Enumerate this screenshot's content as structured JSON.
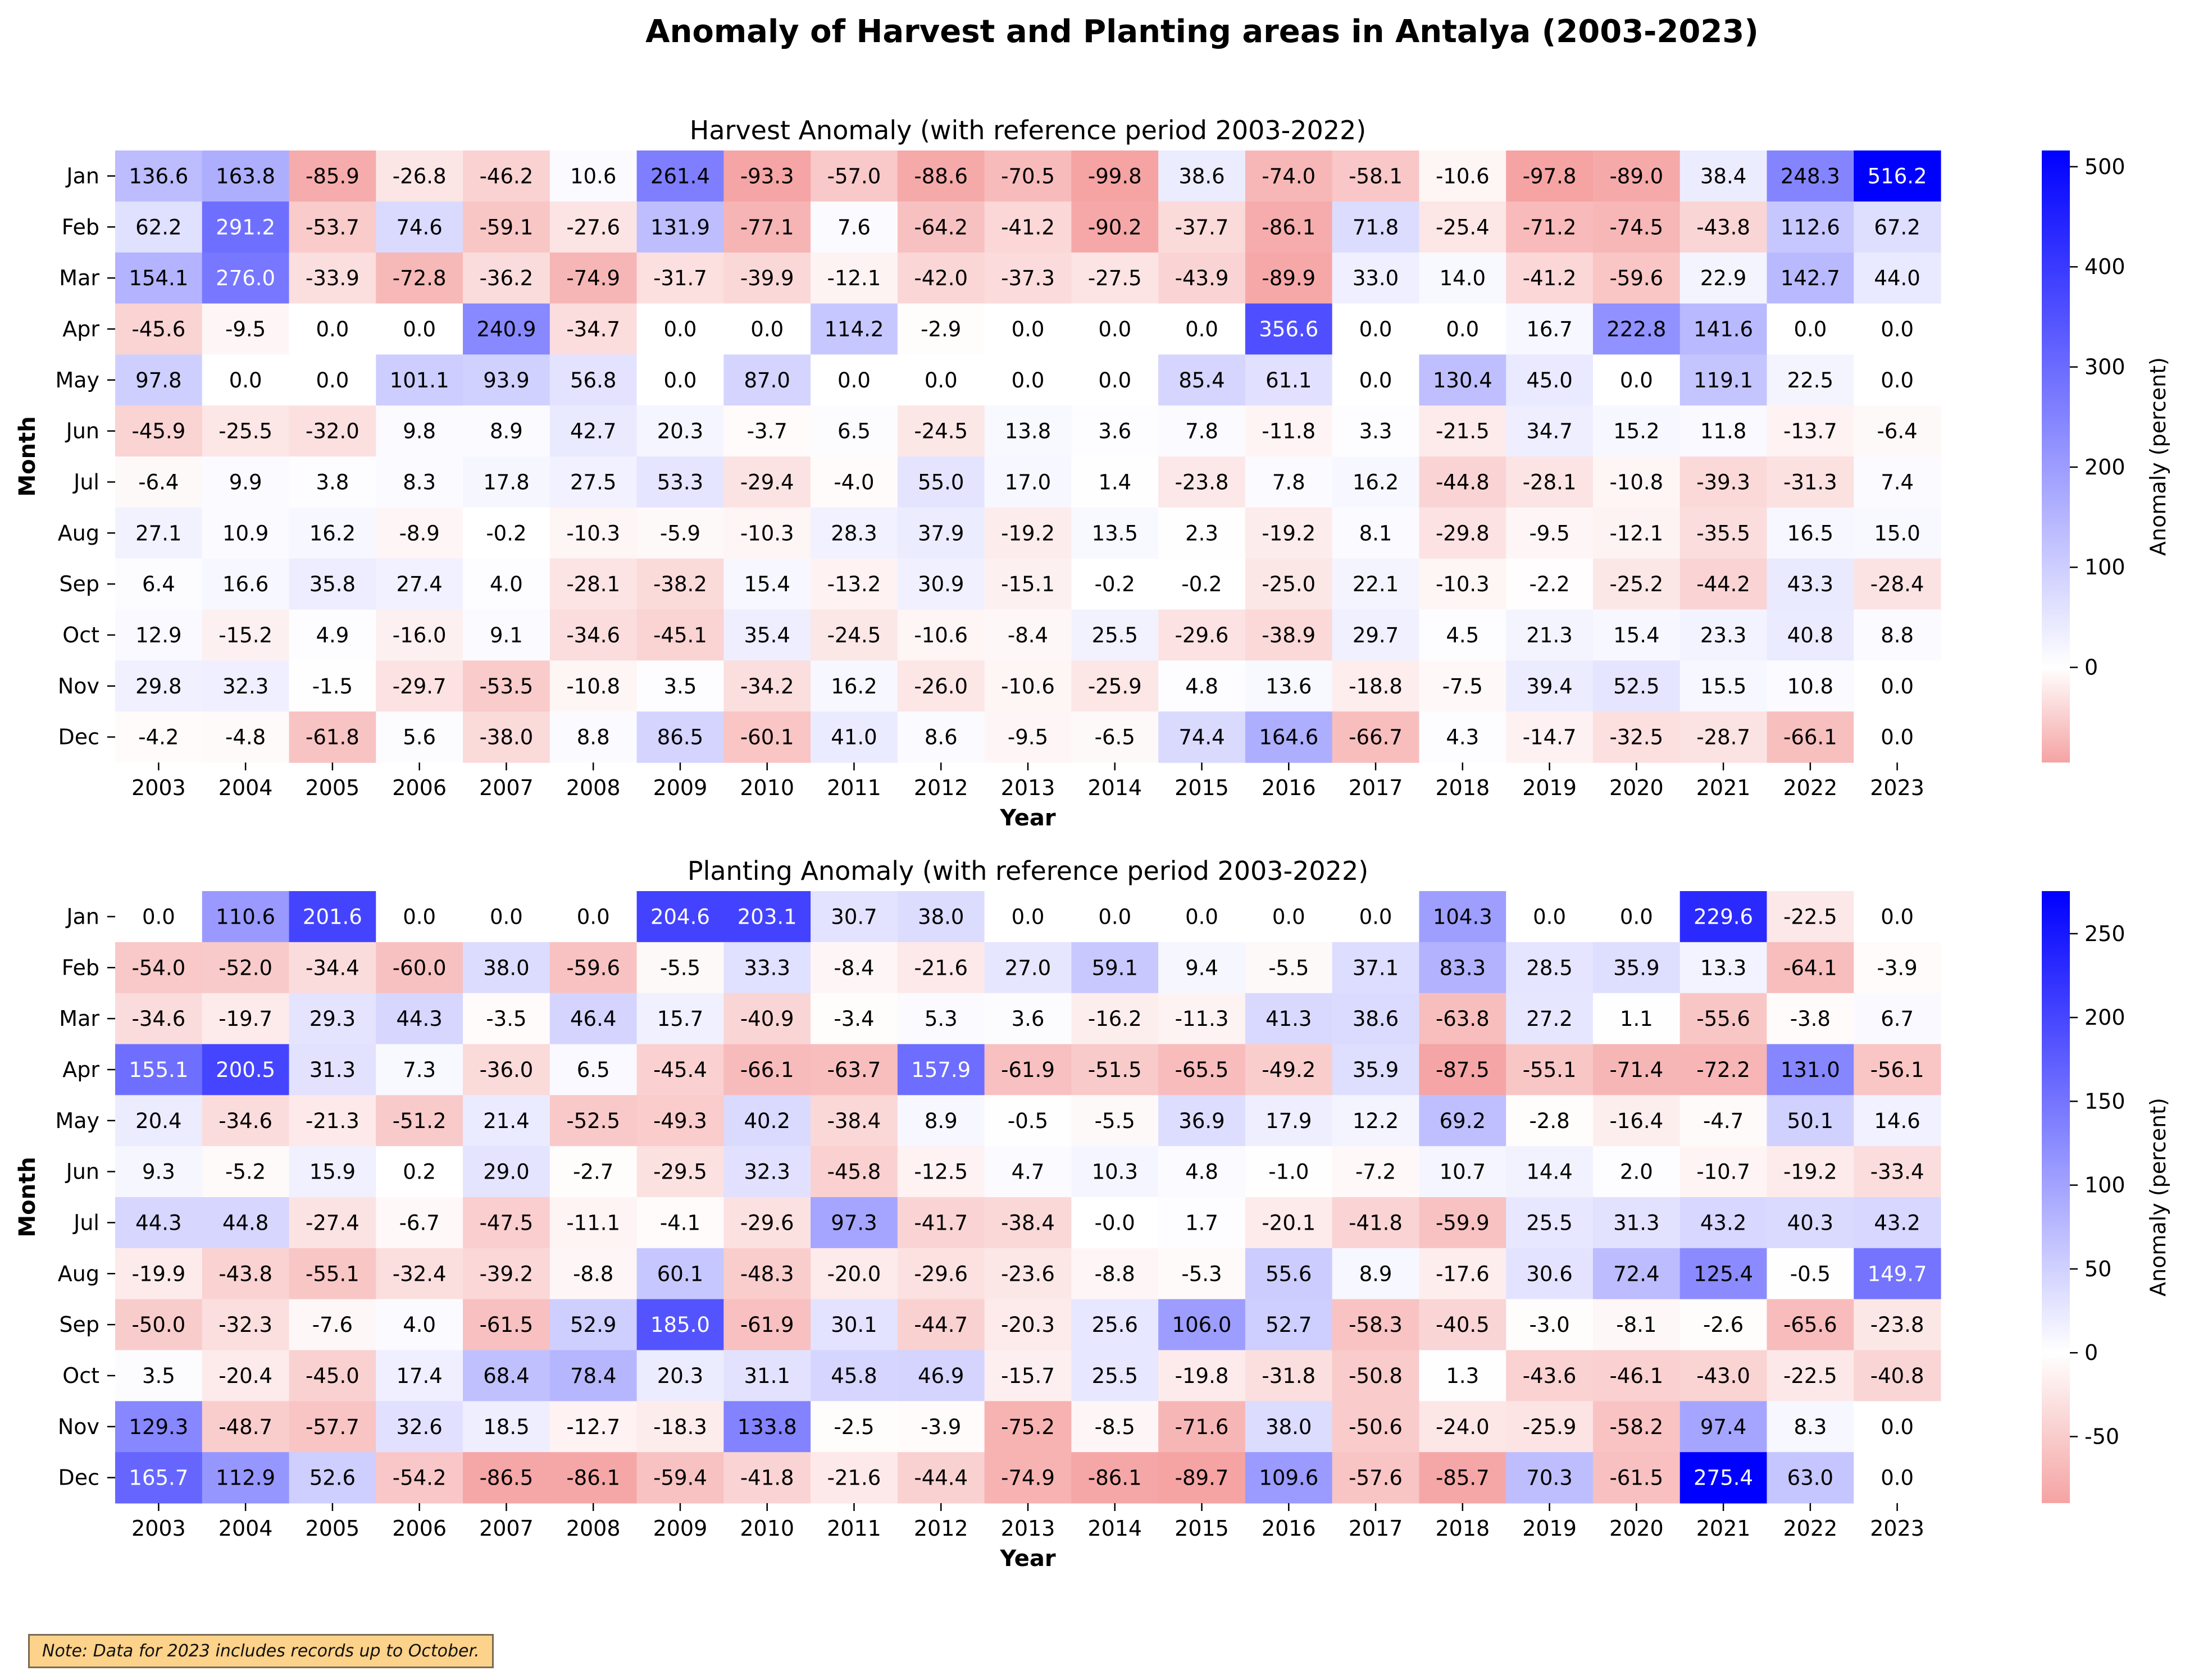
{
  "title": "Anomaly of Harvest and Planting areas in Antalya (2003-2023)",
  "note": "Note: Data for 2023 includes records up to October.",
  "colors": {
    "negative": "#f5a3a3",
    "zero": "#ffffff",
    "positive": "#0000ff"
  },
  "chart_data": [
    {
      "type": "heatmap",
      "title": "Harvest Anomaly (with reference period 2003-2022)",
      "xlabel": "Year",
      "ylabel": "Month",
      "colorbar_label": "Anomaly (percent)",
      "colorbar_ticks": [
        0,
        100,
        200,
        300,
        400,
        500
      ],
      "vmin": -95,
      "vmax": 516.2,
      "years": [
        "2003",
        "2004",
        "2005",
        "2006",
        "2007",
        "2008",
        "2009",
        "2010",
        "2011",
        "2012",
        "2013",
        "2014",
        "2015",
        "2016",
        "2017",
        "2018",
        "2019",
        "2020",
        "2021",
        "2022",
        "2023"
      ],
      "months": [
        "Jan",
        "Feb",
        "Mar",
        "Apr",
        "May",
        "Jun",
        "Jul",
        "Aug",
        "Sep",
        "Oct",
        "Nov",
        "Dec"
      ],
      "values": [
        [
          136.6,
          163.8,
          -85.9,
          -26.8,
          -46.2,
          10.6,
          261.4,
          -93.3,
          -57.0,
          -88.6,
          -70.5,
          -99.8,
          38.6,
          -74.0,
          -58.1,
          -10.6,
          -97.8,
          -89.0,
          38.4,
          248.3,
          516.2
        ],
        [
          62.2,
          291.2,
          -53.7,
          74.6,
          -59.1,
          -27.6,
          131.9,
          -77.1,
          7.6,
          -64.2,
          -41.2,
          -90.2,
          -37.7,
          -86.1,
          71.8,
          -25.4,
          -71.2,
          -74.5,
          -43.8,
          112.6,
          67.2
        ],
        [
          154.1,
          276.0,
          -33.9,
          -72.8,
          -36.2,
          -74.9,
          -31.7,
          -39.9,
          -12.1,
          -42.0,
          -37.3,
          -27.5,
          -43.9,
          -89.9,
          33.0,
          14.0,
          -41.2,
          -59.6,
          22.9,
          142.7,
          44.0
        ],
        [
          -45.6,
          -9.5,
          0.0,
          0.0,
          240.9,
          -34.7,
          0.0,
          0.0,
          114.2,
          -2.9,
          0.0,
          0.0,
          0.0,
          356.6,
          0.0,
          0.0,
          16.7,
          222.8,
          141.6,
          0.0,
          0.0
        ],
        [
          97.8,
          0.0,
          0.0,
          101.1,
          93.9,
          56.8,
          0.0,
          87.0,
          0.0,
          0.0,
          0.0,
          0.0,
          85.4,
          61.1,
          0.0,
          130.4,
          45.0,
          0.0,
          119.1,
          22.5,
          0.0
        ],
        [
          -45.9,
          -25.5,
          -32.0,
          9.8,
          8.9,
          42.7,
          20.3,
          -3.7,
          6.5,
          -24.5,
          13.8,
          3.6,
          7.8,
          -11.8,
          3.3,
          -21.5,
          34.7,
          15.2,
          11.8,
          -13.7,
          -6.4
        ],
        [
          -6.4,
          9.9,
          3.8,
          8.3,
          17.8,
          27.5,
          53.3,
          -29.4,
          -4.0,
          55.0,
          17.0,
          1.4,
          -23.8,
          7.8,
          16.2,
          -44.8,
          -28.1,
          -10.8,
          -39.3,
          -31.3,
          7.4
        ],
        [
          27.1,
          10.9,
          16.2,
          -8.9,
          -0.2,
          -10.3,
          -5.9,
          -10.3,
          28.3,
          37.9,
          -19.2,
          13.5,
          2.3,
          -19.2,
          8.1,
          -29.8,
          -9.5,
          -12.1,
          -35.5,
          16.5,
          15.0
        ],
        [
          6.4,
          16.6,
          35.8,
          27.4,
          4.0,
          -28.1,
          -38.2,
          15.4,
          -13.2,
          30.9,
          -15.1,
          -0.2,
          -0.2,
          -25.0,
          22.1,
          -10.3,
          -2.2,
          -25.2,
          -44.2,
          43.3,
          -28.4
        ],
        [
          12.9,
          -15.2,
          4.9,
          -16.0,
          9.1,
          -34.6,
          -45.1,
          35.4,
          -24.5,
          -10.6,
          -8.4,
          25.5,
          -29.6,
          -38.9,
          29.7,
          4.5,
          21.3,
          15.4,
          23.3,
          40.8,
          8.8
        ],
        [
          29.8,
          32.3,
          -1.5,
          -29.7,
          -53.5,
          -10.8,
          3.5,
          -34.2,
          16.2,
          -26.0,
          -10.6,
          -25.9,
          4.8,
          13.6,
          -18.8,
          -7.5,
          39.4,
          52.5,
          15.5,
          10.8,
          0.0
        ],
        [
          -4.2,
          -4.8,
          -61.8,
          5.6,
          -38.0,
          8.8,
          86.5,
          -60.1,
          41.0,
          8.6,
          -9.5,
          -6.5,
          74.4,
          164.6,
          -66.7,
          4.3,
          -14.7,
          -32.5,
          -28.7,
          -66.1,
          0.0
        ]
      ]
    },
    {
      "type": "heatmap",
      "title": "Planting Anomaly (with reference period 2003-2022)",
      "xlabel": "Year",
      "ylabel": "Month",
      "colorbar_label": "Anomaly (percent)",
      "colorbar_ticks": [
        -50,
        0,
        50,
        100,
        150,
        200,
        250
      ],
      "vmin": -89.7,
      "vmax": 275.4,
      "years": [
        "2003",
        "2004",
        "2005",
        "2006",
        "2007",
        "2008",
        "2009",
        "2010",
        "2011",
        "2012",
        "2013",
        "2014",
        "2015",
        "2016",
        "2017",
        "2018",
        "2019",
        "2020",
        "2021",
        "2022",
        "2023"
      ],
      "months": [
        "Jan",
        "Feb",
        "Mar",
        "Apr",
        "May",
        "Jun",
        "Jul",
        "Aug",
        "Sep",
        "Oct",
        "Nov",
        "Dec"
      ],
      "values": [
        [
          0.0,
          110.6,
          201.6,
          0.0,
          0.0,
          0.0,
          204.6,
          203.1,
          30.7,
          38.0,
          0.0,
          0.0,
          0.0,
          0.0,
          0.0,
          104.3,
          0.0,
          0.0,
          229.6,
          -22.5,
          0.0
        ],
        [
          -54.0,
          -52.0,
          -34.4,
          -60.0,
          38.0,
          -59.6,
          -5.5,
          33.3,
          -8.4,
          -21.6,
          27.0,
          59.1,
          9.4,
          -5.5,
          37.1,
          83.3,
          28.5,
          35.9,
          13.3,
          -64.1,
          -3.9
        ],
        [
          -34.6,
          -19.7,
          29.3,
          44.3,
          -3.5,
          46.4,
          15.7,
          -40.9,
          -3.4,
          5.3,
          3.6,
          -16.2,
          -11.3,
          41.3,
          38.6,
          -63.8,
          27.2,
          1.1,
          -55.6,
          -3.8,
          6.7
        ],
        [
          155.1,
          200.5,
          31.3,
          7.3,
          -36.0,
          6.5,
          -45.4,
          -66.1,
          -63.7,
          157.9,
          -61.9,
          -51.5,
          -65.5,
          -49.2,
          35.9,
          -87.5,
          -55.1,
          -71.4,
          -72.2,
          131.0,
          -56.1
        ],
        [
          20.4,
          -34.6,
          -21.3,
          -51.2,
          21.4,
          -52.5,
          -49.3,
          40.2,
          -38.4,
          8.9,
          -0.5,
          -5.5,
          36.9,
          17.9,
          12.2,
          69.2,
          -2.8,
          -16.4,
          -4.7,
          50.1,
          14.6
        ],
        [
          9.3,
          -5.2,
          15.9,
          0.2,
          29.0,
          -2.7,
          -29.5,
          32.3,
          -45.8,
          -12.5,
          4.7,
          10.3,
          4.8,
          -1.0,
          -7.2,
          10.7,
          14.4,
          2.0,
          -10.7,
          -19.2,
          -33.4
        ],
        [
          44.3,
          44.8,
          -27.4,
          -6.7,
          -47.5,
          -11.1,
          -4.1,
          -29.6,
          97.3,
          -41.7,
          -38.4,
          "-0.0",
          1.7,
          -20.1,
          -41.8,
          -59.9,
          25.5,
          31.3,
          43.2,
          40.3,
          43.2
        ],
        [
          -19.9,
          -43.8,
          -55.1,
          -32.4,
          -39.2,
          -8.8,
          60.1,
          -48.3,
          -20.0,
          -29.6,
          -23.6,
          -8.8,
          -5.3,
          55.6,
          8.9,
          -17.6,
          30.6,
          72.4,
          125.4,
          -0.5,
          149.7
        ],
        [
          -50.0,
          -32.3,
          -7.6,
          4.0,
          -61.5,
          52.9,
          185.0,
          -61.9,
          30.1,
          -44.7,
          -20.3,
          25.6,
          106.0,
          52.7,
          -58.3,
          -40.5,
          -3.0,
          -8.1,
          -2.6,
          -65.6,
          -23.8
        ],
        [
          3.5,
          -20.4,
          -45.0,
          17.4,
          68.4,
          78.4,
          20.3,
          31.1,
          45.8,
          46.9,
          -15.7,
          25.5,
          -19.8,
          -31.8,
          -50.8,
          1.3,
          -43.6,
          -46.1,
          -43.0,
          -22.5,
          -40.8
        ],
        [
          129.3,
          -48.7,
          -57.7,
          32.6,
          18.5,
          -12.7,
          -18.3,
          133.8,
          -2.5,
          -3.9,
          -75.2,
          -8.5,
          -71.6,
          38.0,
          -50.6,
          -24.0,
          -25.9,
          -58.2,
          97.4,
          8.3,
          0.0
        ],
        [
          165.7,
          112.9,
          52.6,
          -54.2,
          -86.5,
          -86.1,
          -59.4,
          -41.8,
          -21.6,
          -44.4,
          -74.9,
          -86.1,
          -89.7,
          109.6,
          -57.6,
          -85.7,
          70.3,
          -61.5,
          275.4,
          63.0,
          0.0
        ]
      ]
    }
  ]
}
